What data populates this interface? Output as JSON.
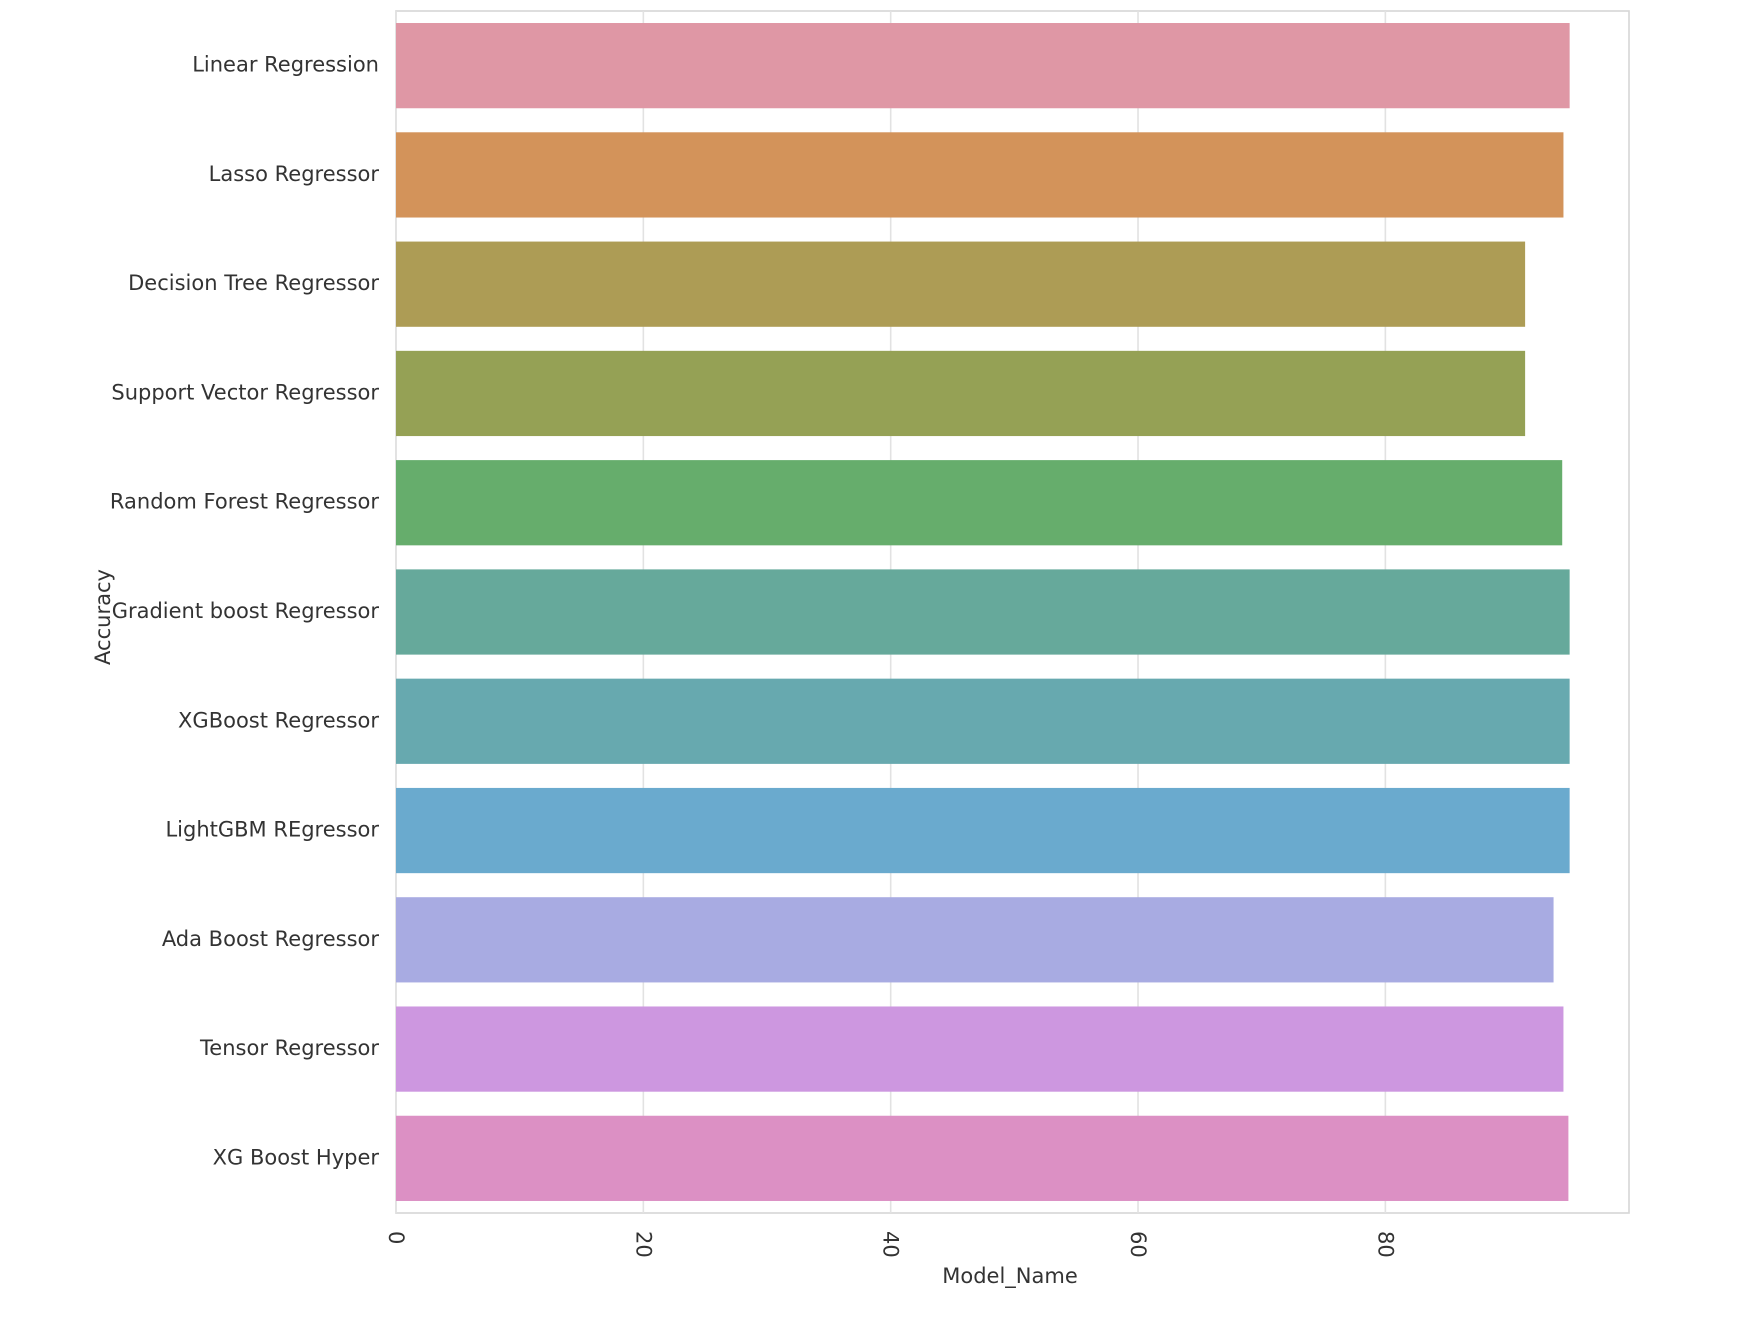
{
  "chart_data": {
    "type": "bar",
    "orientation": "horizontal",
    "title": "",
    "xlabel": "Model_Name",
    "ylabel": "Accuracy",
    "xlim": [
      0,
      99.7
    ],
    "xticks": [
      0,
      20,
      40,
      60,
      80
    ],
    "xtick_labels": [
      "0",
      "20",
      "40",
      "60",
      "80"
    ],
    "grid": true,
    "categories": [
      "Linear Regression",
      "Lasso Regressor",
      "Decision Tree Regressor",
      "Support Vector Regressor",
      "Random Forest Regressor",
      "Gradient boost Regressor",
      "XGBoost Regressor",
      "LightGBM REgressor",
      "Ada Boost Regressor",
      "Tensor Regressor",
      "XG Boost Hyper"
    ],
    "values": [
      94.9,
      94.4,
      91.3,
      91.3,
      94.3,
      94.9,
      94.9,
      94.9,
      93.6,
      94.4,
      94.8
    ],
    "colors": [
      "#df97a5",
      "#d3935a",
      "#ad9c55",
      "#95a155",
      "#66ad6c",
      "#66a99b",
      "#67a9af",
      "#6aaace",
      "#a8abe2",
      "#cd97e0",
      "#dc90c4"
    ]
  }
}
